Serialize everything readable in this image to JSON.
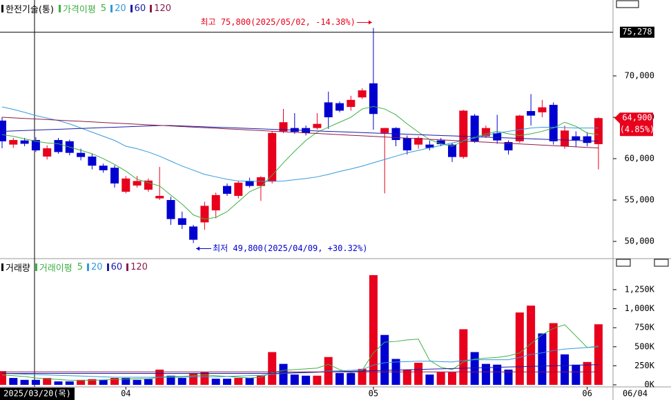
{
  "chart_data": [
    {
      "type": "candlestick",
      "title": "한전기술(통)",
      "ma_label": "가격이평",
      "categories": [
        null,
        null,
        null,
        null,
        null,
        null,
        null,
        null,
        null,
        null,
        null,
        "04",
        null,
        null,
        null,
        null,
        null,
        null,
        null,
        null,
        null,
        null,
        null,
        null,
        null,
        null,
        null,
        null,
        null,
        null,
        null,
        null,
        null,
        "05",
        null,
        null,
        null,
        null,
        null,
        null,
        null,
        null,
        null,
        null,
        null,
        null,
        null,
        null,
        null,
        null,
        null,
        null,
        "06",
        null
      ],
      "open": [
        64600,
        61700,
        62200,
        62250,
        60250,
        62250,
        62100,
        60700,
        60250,
        59150,
        58900,
        56000,
        56750,
        56250,
        55200,
        55000,
        52800,
        51800,
        52300,
        53750,
        56700,
        55500,
        57250,
        56700,
        57250,
        63300,
        63700,
        63700,
        63700,
        66800,
        66700,
        66250,
        67400,
        69100,
        63100,
        63700,
        62500,
        61700,
        61700,
        62200,
        61700,
        60200,
        65200,
        62700,
        63100,
        62000,
        62100,
        65750,
        65600,
        66500,
        61500,
        62700,
        62700,
        61750
      ],
      "high": [
        65000,
        62500,
        62500,
        62600,
        61600,
        62500,
        62300,
        61200,
        60600,
        59400,
        59200,
        57900,
        57900,
        57600,
        59000,
        55400,
        53600,
        52000,
        54800,
        55900,
        57000,
        57300,
        57700,
        57900,
        63300,
        66000,
        65500,
        64000,
        65500,
        68100,
        66900,
        67600,
        68500,
        75800,
        63700,
        63800,
        62800,
        62700,
        62200,
        62500,
        61900,
        65900,
        65400,
        64000,
        65300,
        62200,
        65300,
        67800,
        67100,
        66800,
        64000,
        63300,
        63200,
        65000
      ],
      "low": [
        61250,
        61300,
        61500,
        60800,
        59900,
        60600,
        60400,
        59800,
        58700,
        58300,
        56500,
        55800,
        56500,
        56000,
        55000,
        52000,
        51500,
        49800,
        51400,
        52800,
        55500,
        55200,
        56500,
        54900,
        57000,
        63100,
        63000,
        62800,
        63500,
        63600,
        65600,
        65800,
        67200,
        63500,
        55800,
        61500,
        60500,
        61200,
        61000,
        61500,
        59600,
        60000,
        61900,
        62500,
        61800,
        60500,
        61900,
        64000,
        65000,
        61700,
        61200,
        61400,
        61500,
        58700
      ],
      "close": [
        62100,
        62250,
        61800,
        61000,
        61250,
        60800,
        60700,
        60200,
        59150,
        58600,
        57000,
        57600,
        57300,
        57350,
        55500,
        52700,
        52000,
        50200,
        54300,
        55600,
        55750,
        57100,
        56700,
        57750,
        63100,
        64400,
        63250,
        63100,
        64200,
        65000,
        65800,
        67100,
        68250,
        65400,
        63700,
        62250,
        61000,
        62500,
        61300,
        61750,
        60200,
        65800,
        62100,
        63700,
        62200,
        61000,
        65200,
        65200,
        66200,
        62100,
        63400,
        62250,
        61900,
        64900
      ],
      "up_color": "#e8001c",
      "down_color": "#0000d0",
      "ylim": [
        48170,
        79170
      ],
      "yticks": [
        {
          "value": 50000,
          "label": "50,000"
        },
        {
          "value": 55000,
          "label": "55,000"
        },
        {
          "value": 60000,
          "label": "60,000"
        },
        {
          "value": 65000,
          "label": "65,000"
        },
        {
          "value": 70000,
          "label": "70,000"
        }
      ],
      "series": [
        {
          "name": "5",
          "color": "#3cb043",
          "values": [
            62900,
            62700,
            62400,
            62100,
            61900,
            61800,
            61400,
            61000,
            60600,
            60000,
            59300,
            58500,
            57500,
            57100,
            56700,
            55600,
            54500,
            53200,
            52700,
            52900,
            53600,
            54800,
            56000,
            56600,
            58000,
            59500,
            60900,
            62200,
            63200,
            63800,
            64400,
            65000,
            66000,
            66300,
            66000,
            65300,
            64200,
            63200,
            62300,
            61800,
            61500,
            62100,
            62600,
            63000,
            63300,
            63000,
            62800,
            63000,
            63300,
            63700,
            64400,
            63900,
            63100,
            62900
          ]
        },
        {
          "name": "20",
          "color": "#3399dd",
          "values": [
            66250,
            65950,
            65600,
            65200,
            64900,
            64600,
            64200,
            63700,
            63200,
            62700,
            62200,
            61500,
            61200,
            60800,
            60300,
            59700,
            59100,
            58600,
            58100,
            57800,
            57500,
            57300,
            57300,
            57250,
            57250,
            57300,
            57450,
            57600,
            57800,
            58100,
            58450,
            58750,
            59100,
            59500,
            59900,
            60300,
            60700,
            61000,
            61300,
            61600,
            61900,
            62200,
            62500,
            62800,
            63100,
            63300,
            63500,
            63700,
            63800,
            63800,
            63750,
            63700,
            63700,
            63700
          ]
        },
        {
          "name": "60",
          "color": "#1a1aa8",
          "values": [
            63300,
            63350,
            63400,
            63450,
            63500,
            63550,
            63600,
            63650,
            63700,
            63750,
            63800,
            63850,
            63900,
            63950,
            64000,
            64000,
            63950,
            63900,
            63850,
            63800,
            63750,
            63700,
            63650,
            63600,
            63550,
            63500,
            63450,
            63400,
            63350,
            63300,
            63250,
            63200,
            63150,
            63100,
            63050,
            63000,
            62950,
            62900,
            62850,
            62800,
            62750,
            62700,
            62650,
            62600,
            62550,
            62500,
            62450,
            62400,
            62350,
            62300,
            62250,
            62200,
            62150,
            62100
          ]
        },
        {
          "name": "120",
          "color": "#8b1a4a",
          "values": [
            65000,
            64930,
            64860,
            64790,
            64720,
            64650,
            64580,
            64510,
            64440,
            64370,
            64300,
            64230,
            64160,
            64090,
            64020,
            63950,
            63880,
            63810,
            63740,
            63670,
            63600,
            63530,
            63460,
            63390,
            63320,
            63250,
            63180,
            63110,
            63040,
            62970,
            62900,
            62830,
            62760,
            62690,
            62620,
            62550,
            62480,
            62410,
            62340,
            62270,
            62200,
            62130,
            62060,
            61990,
            61920,
            61850,
            61780,
            61710,
            61640,
            61570,
            61500,
            61430,
            61360,
            61290
          ]
        }
      ],
      "high_annotation": "최고 75,800(2025/05/02, -14.38%)",
      "low_annotation": "최저 49,800(2025/04/09, +30.32%)",
      "crosshair": {
        "value": 75278,
        "label": "75,278"
      },
      "current": {
        "value": 64900,
        "label": "64,900",
        "change_label": "(4.85%)"
      }
    },
    {
      "type": "bar",
      "title": "거래량",
      "ma_label": "거래이평",
      "values": [
        180000,
        90000,
        65000,
        65000,
        90000,
        45000,
        45000,
        65000,
        75000,
        65000,
        90000,
        90000,
        65000,
        75000,
        200000,
        120000,
        90000,
        155000,
        165000,
        80000,
        80000,
        90000,
        90000,
        120000,
        430000,
        275000,
        135000,
        120000,
        120000,
        365000,
        155000,
        155000,
        210000,
        1440000,
        655000,
        340000,
        200000,
        290000,
        135000,
        165000,
        165000,
        730000,
        430000,
        275000,
        265000,
        200000,
        950000,
        1040000,
        675000,
        810000,
        400000,
        265000,
        300000,
        795000
      ],
      "colors": [
        "#e8001c",
        "#0000d0",
        "#0000d0",
        "#0000d0",
        "#e8001c",
        "#0000d0",
        "#0000d0",
        "#e8001c",
        "#e8001c",
        "#0000d0",
        "#e8001c",
        "#0000d0",
        "#0000d0",
        "#0000d0",
        "#e8001c",
        "#0000d0",
        "#0000d0",
        "#e8001c",
        "#e8001c",
        "#0000d0",
        "#0000d0",
        "#e8001c",
        "#0000d0",
        "#e8001c",
        "#e8001c",
        "#0000d0",
        "#0000d0",
        "#0000d0",
        "#e8001c",
        "#e8001c",
        "#0000d0",
        "#0000d0",
        "#e8001c",
        "#e8001c",
        "#0000d0",
        "#0000d0",
        "#e8001c",
        "#e8001c",
        "#0000d0",
        "#e8001c",
        "#e8001c",
        "#e8001c",
        "#0000d0",
        "#0000d0",
        "#0000d0",
        "#0000d0",
        "#e8001c",
        "#e8001c",
        "#0000d0",
        "#e8001c",
        "#0000d0",
        "#0000d0",
        "#e8001c",
        "#e8001c"
      ],
      "ylim": [
        -18000,
        1630000
      ],
      "yticks": [
        {
          "value": 0,
          "label": "0K"
        },
        {
          "value": 250000,
          "label": "250K"
        },
        {
          "value": 500000,
          "label": "500K"
        },
        {
          "value": 750000,
          "label": "750K"
        },
        {
          "value": 1000000,
          "label": "1,000K"
        },
        {
          "value": 1250000,
          "label": "1,250K"
        }
      ],
      "series": [
        {
          "name": "5",
          "color": "#3cb043",
          "values": [
            130000,
            120000,
            110000,
            90000,
            80000,
            70000,
            60000,
            60000,
            60000,
            65000,
            70000,
            75000,
            80000,
            80000,
            100000,
            110000,
            110000,
            120000,
            130000,
            120000,
            110000,
            100000,
            90000,
            100000,
            160000,
            190000,
            200000,
            210000,
            220000,
            270000,
            200000,
            160000,
            190000,
            420000,
            560000,
            570000,
            590000,
            600000,
            320000,
            230000,
            200000,
            300000,
            340000,
            350000,
            360000,
            380000,
            420000,
            540000,
            660000,
            740000,
            790000,
            640000,
            490000,
            510000
          ]
        },
        {
          "name": "20",
          "color": "#3399dd",
          "values": [
            150000,
            145000,
            140000,
            135000,
            130000,
            125000,
            120000,
            115000,
            110000,
            105000,
            100000,
            100000,
            100000,
            100000,
            100000,
            100000,
            100000,
            105000,
            105000,
            105000,
            110000,
            115000,
            120000,
            125000,
            140000,
            150000,
            155000,
            160000,
            165000,
            180000,
            185000,
            190000,
            200000,
            260000,
            290000,
            300000,
            305000,
            310000,
            310000,
            305000,
            300000,
            320000,
            330000,
            330000,
            330000,
            330000,
            360000,
            400000,
            420000,
            450000,
            470000,
            480000,
            490000,
            500000
          ]
        },
        {
          "name": "60",
          "color": "#1a1aa8",
          "values": [
            150000,
            150000,
            150000,
            150000,
            150000,
            150000,
            150000,
            150000,
            150000,
            150000,
            150000,
            150000,
            150000,
            150000,
            150000,
            150000,
            150000,
            150000,
            150000,
            150000,
            150000,
            150000,
            150000,
            150000,
            150000,
            154000,
            158000,
            162000,
            166000,
            170000,
            174000,
            178000,
            182000,
            186000,
            190000,
            194000,
            198000,
            202000,
            206000,
            210000,
            214000,
            218000,
            222000,
            226000,
            230000,
            234000,
            238000,
            242000,
            246000,
            250000,
            254000,
            258000,
            262000,
            266000
          ]
        },
        {
          "name": "120",
          "color": "#8b1a4a",
          "values": [
            170000,
            170000,
            170000,
            170000,
            170000,
            170000,
            170000,
            170000,
            170000,
            170000,
            170000,
            170000,
            170000,
            170000,
            170000,
            170000,
            170000,
            170000,
            170000,
            170000,
            170000,
            170000,
            170000,
            170000,
            170000,
            170000,
            170000,
            170000,
            170000,
            170000,
            170000,
            170000,
            170000,
            170000,
            170000,
            170000,
            170000,
            170000,
            170000,
            170000,
            170000,
            170000,
            170000,
            170000,
            170000,
            170000,
            170000,
            170000,
            170000,
            170000,
            170000,
            170000,
            170000,
            170000
          ]
        }
      ]
    }
  ],
  "x_axis": {
    "crosshair_label": "2025/03/20(목)",
    "last_date": "06/04"
  }
}
